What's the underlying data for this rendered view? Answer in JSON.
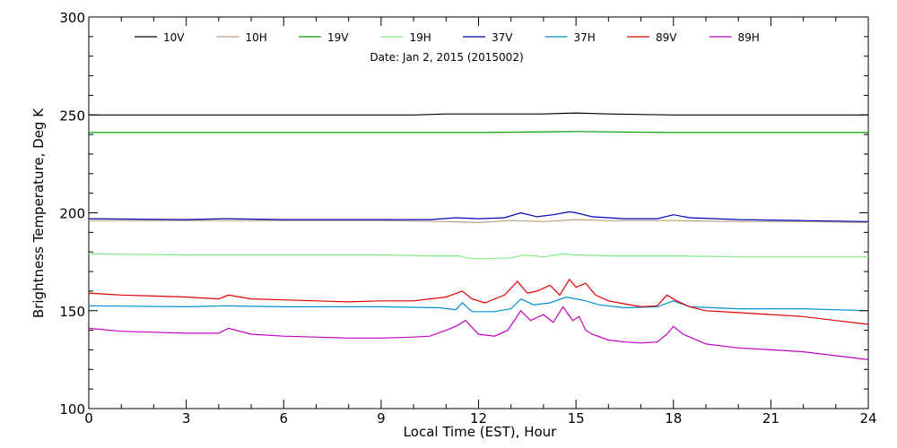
{
  "chart_data": {
    "type": "line",
    "title": "Date: Jan  2, 2015 (2015002)",
    "xlabel": "Local Time (EST), Hour",
    "ylabel": "Brightness Temperature, Deg K",
    "xlim": [
      0,
      24
    ],
    "ylim": [
      100,
      300
    ],
    "xticks": [
      0,
      3,
      6,
      9,
      12,
      15,
      18,
      21,
      24
    ],
    "yticks": [
      100,
      150,
      200,
      250,
      300
    ],
    "grid": false,
    "legend_position": "top",
    "series": [
      {
        "name": "10V",
        "color": "#000000",
        "x": [
          0,
          2,
          4,
          6,
          8,
          10,
          11,
          12,
          13,
          14,
          15,
          16,
          18,
          20,
          22,
          24
        ],
        "y": [
          250,
          250,
          250,
          250,
          250,
          250,
          250.5,
          250.5,
          250.5,
          250.5,
          251,
          250.5,
          250,
          250,
          250,
          250
        ]
      },
      {
        "name": "10H",
        "color": "#b8a080",
        "x": [
          0,
          3,
          6,
          9,
          11,
          12,
          13,
          14,
          15,
          16,
          18,
          20,
          22,
          24
        ],
        "y": [
          196,
          196,
          196,
          196,
          195.5,
          195,
          196,
          195.5,
          196.5,
          196,
          196,
          195.5,
          195.5,
          195
        ]
      },
      {
        "name": "19V",
        "color": "#00a000",
        "x": [
          0,
          3,
          6,
          9,
          12,
          15,
          18,
          21,
          24
        ],
        "y": [
          241,
          241,
          241,
          241,
          241,
          241.5,
          241,
          241,
          241
        ]
      },
      {
        "name": "19H",
        "color": "#80ee80",
        "x": [
          0,
          3,
          6,
          9,
          10.5,
          11.4,
          11.6,
          12,
          13,
          13.4,
          14,
          14.6,
          15,
          16,
          18,
          20,
          22,
          24
        ],
        "y": [
          179,
          178.5,
          178.5,
          178.5,
          178,
          178,
          177,
          176.5,
          177,
          178.5,
          177.5,
          179,
          178.5,
          178,
          178,
          177.5,
          177.5,
          177.5
        ]
      },
      {
        "name": "37V",
        "color": "#0000b0",
        "x": [
          0,
          3,
          4.2,
          6,
          9,
          10.5,
          11.3,
          12,
          12.8,
          13.3,
          13.8,
          14.3,
          14.8,
          15,
          15.5,
          16.5,
          17.5,
          18,
          18.5,
          20,
          22,
          24
        ],
        "y": [
          197,
          196.5,
          197,
          196.5,
          196.5,
          196.5,
          197.5,
          197,
          197.5,
          200,
          198,
          199,
          200.5,
          200,
          198,
          197,
          197,
          199,
          197.5,
          196.5,
          196,
          195.5
        ]
      },
      {
        "name": "37H",
        "color": "#0090d0",
        "x": [
          0,
          3,
          4.2,
          6,
          9,
          10.8,
          11.3,
          11.5,
          11.8,
          12.5,
          13,
          13.3,
          13.7,
          14.2,
          14.7,
          15,
          15.3,
          15.7,
          16.5,
          17.5,
          18,
          18.5,
          20,
          22,
          24
        ],
        "y": [
          152.5,
          152,
          152.5,
          152,
          152,
          151.5,
          150.5,
          154,
          149.5,
          149.5,
          151,
          156,
          153,
          154,
          157,
          156,
          155,
          153,
          151.5,
          152,
          155,
          152,
          151,
          151,
          150
        ]
      },
      {
        "name": "89V",
        "color": "#e00000",
        "x": [
          0,
          1,
          2,
          3,
          4,
          4.3,
          5,
          6,
          7,
          8,
          9,
          10,
          10.5,
          11,
          11.5,
          11.8,
          12.2,
          12.8,
          13.2,
          13.5,
          13.8,
          14.2,
          14.5,
          14.8,
          15,
          15.3,
          15.6,
          16,
          16.5,
          17,
          17.5,
          17.8,
          18.1,
          18.5,
          19,
          20,
          21,
          22,
          23,
          24
        ],
        "y": [
          159,
          158,
          157.5,
          157,
          156,
          158,
          156,
          155.5,
          155,
          154.5,
          155,
          155,
          156,
          157,
          160,
          156,
          154,
          158,
          165,
          159,
          160,
          163,
          158,
          166,
          162,
          164,
          158,
          155,
          153.5,
          152,
          152.5,
          158,
          155,
          152,
          150,
          149,
          148,
          147,
          145,
          143
        ]
      },
      {
        "name": "89H",
        "color": "#c000c0",
        "x": [
          0,
          1,
          2,
          3,
          4,
          4.3,
          5,
          6,
          7,
          8,
          9,
          10,
          10.5,
          11,
          11.3,
          11.6,
          12,
          12.5,
          12.9,
          13.3,
          13.6,
          14,
          14.3,
          14.6,
          14.9,
          15.1,
          15.3,
          15.5,
          16,
          16.5,
          17,
          17.5,
          17.8,
          18,
          18.3,
          19,
          20,
          21,
          22,
          23,
          24
        ],
        "y": [
          141,
          139.5,
          139,
          138.5,
          138.5,
          141,
          138,
          137,
          136.5,
          136,
          136,
          136.5,
          137,
          140,
          142,
          145,
          138,
          137,
          140,
          150,
          145,
          148,
          144,
          152,
          145,
          147,
          140,
          138,
          135,
          134,
          133.5,
          134,
          138,
          142,
          138,
          133,
          131,
          130,
          129,
          127,
          125
        ]
      }
    ]
  }
}
